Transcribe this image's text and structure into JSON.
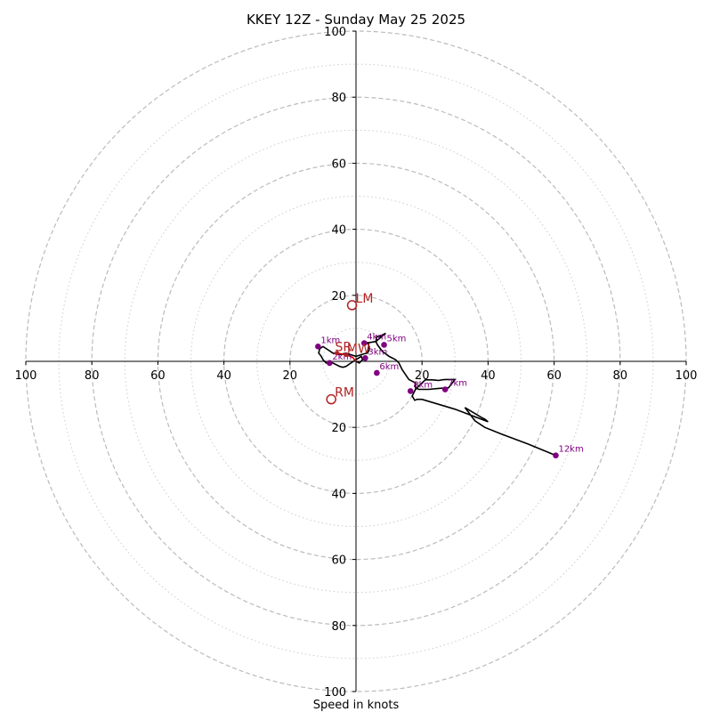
{
  "chart_data": {
    "type": "hodograph",
    "title": "KKEY 12Z - Sunday May 25 2025",
    "xlabel": "Speed in knots",
    "ylabel": "",
    "xlim": [
      -100,
      100
    ],
    "ylim": [
      -100,
      100
    ],
    "grid": true,
    "ring_major": [
      20,
      40,
      60,
      80,
      100
    ],
    "ring_minor": [
      10,
      30,
      50,
      70,
      90
    ],
    "x_tick_values": [
      -100,
      -80,
      -60,
      -40,
      -20,
      20,
      40,
      60,
      80,
      100
    ],
    "x_tick_labels": [
      "100",
      "80",
      "60",
      "40",
      "20",
      "20",
      "40",
      "60",
      "80",
      "100"
    ],
    "y_tick_values": [
      100,
      80,
      60,
      40,
      20,
      -20,
      -40,
      -60,
      -80,
      -100
    ],
    "y_tick_labels": [
      "100",
      "80",
      "60",
      "40",
      "20",
      "20",
      "40",
      "60",
      "80",
      "100"
    ],
    "hodograph_trace": {
      "u": [
        0.0,
        1.0,
        2.0,
        1.6,
        -0.5,
        -2.0,
        -3.0,
        -4.0,
        -5.0,
        -6.0,
        -7.0,
        -8.0,
        -8.2,
        -9.0,
        -10.0,
        -10.5,
        -11.3,
        -11.0,
        -10.0,
        -8.5,
        -7.0,
        -5.0,
        -3.0,
        -1.5,
        0.0,
        1.5,
        2.5,
        3.5,
        4.0,
        4.0,
        3.5,
        2.8,
        3.0,
        6.0,
        9.0,
        9.0,
        8.0,
        7.0,
        6.3,
        6.0,
        6.5,
        8.0,
        10.0,
        12.0,
        13.0,
        14.0,
        16.0,
        17.0,
        18.0,
        18.0,
        19.0,
        22.0,
        25.0,
        28.0,
        30.0,
        27.0,
        26.0,
        25.0,
        24.0,
        23.0,
        22.0,
        21.3,
        21.0,
        19.5,
        18.0,
        17.0,
        17.8,
        18.5,
        20.0,
        30.0,
        40.0,
        39.0,
        38.0,
        33.0,
        36.0,
        39.0,
        44.0,
        52.0,
        60.5
      ],
      "v": [
        0.0,
        -0.5,
        0.5,
        1.5,
        0.2,
        -0.8,
        -1.5,
        -1.8,
        -1.5,
        -1.0,
        -0.5,
        -0.2,
        -0.5,
        -0.5,
        0.5,
        1.5,
        2.5,
        3.8,
        4.5,
        3.5,
        2.5,
        2.0,
        2.5,
        2.0,
        1.5,
        2.0,
        2.3,
        2.5,
        3.5,
        4.5,
        5.7,
        5.5,
        5.5,
        6.0,
        8.5,
        8.5,
        8.0,
        7.5,
        7.5,
        6.0,
        5.0,
        3.0,
        1.5,
        0.5,
        -0.5,
        -2.5,
        -5.5,
        -6.0,
        -6.5,
        -8.0,
        -8.5,
        -8.5,
        -8.2,
        -8.0,
        -5.5,
        -5.5,
        -5.6,
        -5.8,
        -5.7,
        -5.6,
        -5.6,
        -5.6,
        -5.6,
        -7.0,
        -8.5,
        -10.5,
        -11.8,
        -11.5,
        -11.5,
        -14.5,
        -18.3,
        -17.5,
        -17.0,
        -14.0,
        -18.0,
        -20.0,
        -22.0,
        -25.0,
        -28.5
      ]
    },
    "height_points": [
      {
        "label": "1km",
        "u": -11.5,
        "v": 4.5
      },
      {
        "label": "2km",
        "u": -8.0,
        "v": -0.5
      },
      {
        "label": "3km",
        "u": 2.8,
        "v": 1.0
      },
      {
        "label": "4km",
        "u": 2.5,
        "v": 5.5
      },
      {
        "label": "5km",
        "u": 8.5,
        "v": 5.0
      },
      {
        "label": "6km",
        "u": 6.3,
        "v": -3.5
      },
      {
        "label": "7km",
        "u": 27.0,
        "v": -8.5
      },
      {
        "label": "8km",
        "u": 16.5,
        "v": -9.0
      },
      {
        "label": "12km",
        "u": 60.5,
        "v": -28.5
      }
    ],
    "lowlevel_trace": {
      "u": [
        -5.8,
        -3.0,
        -1.0,
        0.0
      ],
      "v": [
        2.5,
        2.0,
        1.2,
        0.0
      ]
    },
    "storm_markers": [
      {
        "label": "LM",
        "u": -1.2,
        "v": 17.0
      },
      {
        "label": "RM",
        "u": -7.5,
        "v": -11.5
      },
      {
        "label": "MW",
        "u": -3.0,
        "v": 2.0
      },
      {
        "label": "SR",
        "u": -5.8,
        "v": 2.5
      }
    ],
    "colors": {
      "trace": "#000000",
      "height_point": "#800080",
      "storm_marker": "#b22222",
      "lowlevel_trace": "#cc0000",
      "grid_major": "#bbbbbb",
      "grid_minor": "#cccccc",
      "axes": "#000000"
    }
  }
}
